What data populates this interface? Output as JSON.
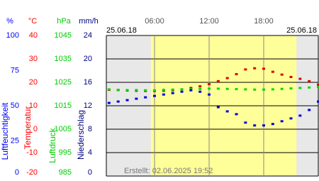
{
  "chart_data": {
    "type": "scatter",
    "date_left": "25.06.18",
    "date_right": "25.06.18",
    "footer": "Erstellt: 02.06.2025 19:52",
    "xlim": [
      0.7,
      24
    ],
    "xticks": [
      {
        "value": 6,
        "label": "06:00"
      },
      {
        "value": 12,
        "label": "12:00"
      },
      {
        "value": 18,
        "label": "18:00"
      }
    ],
    "daylight": [
      5.6,
      21.6
    ],
    "grid": true,
    "axes": [
      {
        "unit": "%",
        "label": "Luftfeuchtigkeit",
        "color": "#0000ff",
        "ylim": [
          0,
          100
        ],
        "yticks": [
          0,
          25,
          50,
          75,
          100
        ]
      },
      {
        "unit": "°C",
        "label": "Temperatur",
        "color": "#ff0000",
        "ylim": [
          -20,
          40
        ],
        "yticks": [
          -20,
          -10,
          0,
          10,
          20,
          30,
          40
        ]
      },
      {
        "unit": "hPa",
        "label": "Luftdruck",
        "color": "#00cc00",
        "ylim": [
          985,
          1045
        ],
        "yticks": [
          985,
          995,
          1005,
          1015,
          1025,
          1035,
          1045
        ]
      },
      {
        "unit": "mm/h",
        "label": "Niederschlag",
        "color": "#000080",
        "ylim": [
          0,
          24
        ],
        "yticks": [
          0,
          4,
          8,
          12,
          16,
          20,
          24
        ]
      }
    ],
    "x": [
      1,
      2,
      3,
      4,
      5,
      6,
      7,
      8,
      9,
      10,
      11,
      12,
      13,
      14,
      15,
      16,
      17,
      18,
      19,
      20,
      21,
      22,
      23,
      24
    ],
    "series": [
      {
        "axis": 1,
        "color": "#dd0000",
        "values": [
          16.8,
          16.7,
          16.5,
          16.4,
          16.3,
          16.3,
          16.4,
          16.6,
          17.0,
          17.6,
          18.3,
          19.2,
          20.5,
          21.8,
          23.5,
          25.5,
          26.0,
          25.8,
          24.5,
          23.3,
          22.3,
          21.5,
          20.5,
          19.0
        ]
      },
      {
        "axis": 2,
        "color": "#00dd00",
        "values": [
          1022.0,
          1021.8,
          1021.7,
          1021.7,
          1021.6,
          1021.6,
          1021.8,
          1021.9,
          1022.0,
          1022.1,
          1022.2,
          1022.3,
          1022.3,
          1022.2,
          1022.1,
          1022.0,
          1021.9,
          1021.9,
          1022.0,
          1022.2,
          1022.4,
          1022.6,
          1022.8,
          1023.0
        ]
      },
      {
        "axis": 0,
        "color": "#0000dd",
        "values": [
          52,
          53,
          54,
          55,
          56,
          57,
          58,
          59,
          60,
          61,
          60,
          58,
          49,
          46,
          44,
          38,
          36,
          36,
          37,
          39,
          41,
          43,
          47,
          53
        ]
      }
    ]
  }
}
